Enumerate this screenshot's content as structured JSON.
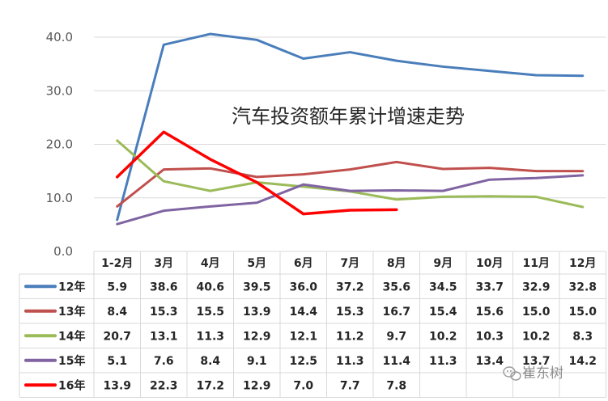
{
  "chart_data": {
    "type": "line",
    "title": "汽车投资额年累计增速走势",
    "categories": [
      "1-2月",
      "3月",
      "4月",
      "5月",
      "6月",
      "7月",
      "8月",
      "9月",
      "10月",
      "11月",
      "12月"
    ],
    "ylim": [
      0,
      45
    ],
    "y_ticks": [
      "0.0",
      "10.0",
      "20.0",
      "30.0",
      "40.0"
    ],
    "y_tick_values": [
      0,
      10,
      20,
      30,
      40
    ],
    "grid": true,
    "legend": "data-table",
    "series": [
      {
        "name": "12年",
        "color": "#4a7ebb",
        "values": [
          5.9,
          38.6,
          40.6,
          39.5,
          36.0,
          37.2,
          35.6,
          34.5,
          33.7,
          32.9,
          32.8
        ],
        "labels": [
          "5.9",
          "38.6",
          "40.6",
          "39.5",
          "36.0",
          "37.2",
          "35.6",
          "34.5",
          "33.7",
          "32.9",
          "32.8"
        ]
      },
      {
        "name": "13年",
        "color": "#c0504d",
        "values": [
          8.4,
          15.3,
          15.5,
          13.9,
          14.4,
          15.3,
          16.7,
          15.4,
          15.6,
          15.0,
          15.0
        ],
        "labels": [
          "8.4",
          "15.3",
          "15.5",
          "13.9",
          "14.4",
          "15.3",
          "16.7",
          "15.4",
          "15.6",
          "15.0",
          "15.0"
        ]
      },
      {
        "name": "14年",
        "color": "#9bbb59",
        "values": [
          20.7,
          13.1,
          11.3,
          12.9,
          12.1,
          11.2,
          9.7,
          10.2,
          10.3,
          10.2,
          8.3
        ],
        "labels": [
          "20.7",
          "13.1",
          "11.3",
          "12.9",
          "12.1",
          "11.2",
          "9.7",
          "10.2",
          "10.3",
          "10.2",
          "8.3"
        ]
      },
      {
        "name": "15年",
        "color": "#8064a2",
        "values": [
          5.1,
          7.6,
          8.4,
          9.1,
          12.5,
          11.3,
          11.4,
          11.3,
          13.4,
          13.7,
          14.2
        ],
        "labels": [
          "5.1",
          "7.6",
          "8.4",
          "9.1",
          "12.5",
          "11.3",
          "11.4",
          "11.3",
          "13.4",
          "13.7",
          "14.2"
        ]
      },
      {
        "name": "16年",
        "color": "#ff0000",
        "values": [
          13.9,
          22.3,
          17.2,
          12.9,
          7.0,
          7.7,
          7.8,
          null,
          null,
          null,
          null
        ],
        "labels": [
          "13.9",
          "22.3",
          "17.2",
          "12.9",
          "7.0",
          "7.7",
          "7.8",
          "",
          "",
          "",
          ""
        ]
      }
    ]
  },
  "watermark": {
    "text": "崔东树",
    "icon": "wechat-icon"
  }
}
